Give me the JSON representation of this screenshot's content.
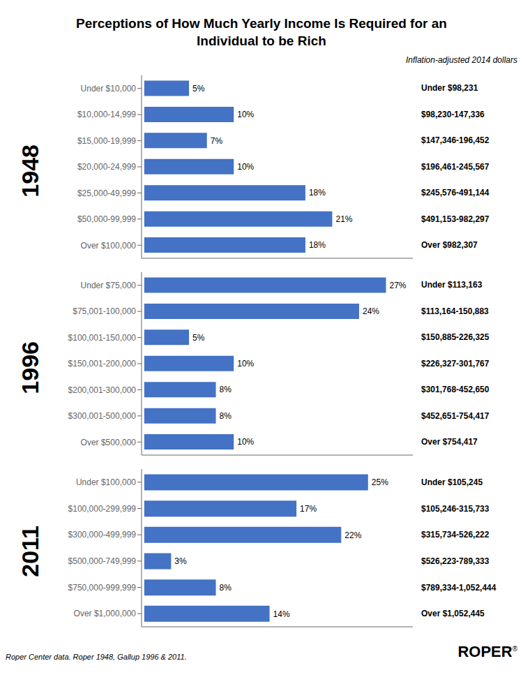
{
  "title": "Perceptions of How Much Yearly Income Is Required for an\nIndividual to be Rich",
  "subtitle": "Inflation-adjusted 2014 dollars",
  "annotations": [
    "Roper Center data. Roper 1948, Gallup 1996 & 2011.",
    "ROPER",
    "®"
  ],
  "chart_data": [
    {
      "type": "bar",
      "orientation": "horizontal",
      "title": "1948",
      "color": "#4472C4",
      "data_labels": true,
      "tick_labels": "y",
      "xlim": [
        -0.3,
        30
      ],
      "categories": [
        "Under $10,000",
        "$10,000-14,999",
        "$15,000-19,999",
        "$20,000-24,999",
        "$25,000-49,999",
        "$50,000-99,999",
        "Over $100,000"
      ],
      "values": [
        5,
        10,
        7,
        10,
        18,
        21,
        18
      ],
      "value_labels": [
        "5%",
        "10%",
        "7%",
        "10%",
        "18%",
        "21%",
        "18%"
      ],
      "annotations": [
        "Under $98,231",
        "$98,230-147,336",
        "$147,346-196,452",
        "$196,461-245,567",
        "$245,576-491,144",
        "$491,153-982,297",
        "Over $982,307"
      ]
    },
    {
      "type": "bar",
      "orientation": "horizontal",
      "title": "1996",
      "color": "#4472C4",
      "data_labels": true,
      "tick_labels": "y",
      "xlim": [
        -0.3,
        30
      ],
      "categories": [
        "Under $75,000",
        "$75,001-100,000",
        "$100,001-150,000",
        "$150,001-200,000",
        "$200,001-300,000",
        "$300,001-500,000",
        "Over $500,000"
      ],
      "values": [
        27,
        24,
        5,
        10,
        8,
        8,
        10
      ],
      "value_labels": [
        "27%",
        "24%",
        "5%",
        "10%",
        "8%",
        "8%",
        "10%"
      ],
      "annotations": [
        "Under $113,163",
        "$113,164-150,883",
        "$150,885-226,325",
        "$226,327-301,767",
        "$301,768-452,650",
        "$452,651-754,417",
        "Over $754,417"
      ]
    },
    {
      "type": "bar",
      "orientation": "horizontal",
      "title": "2011",
      "color": "#4472C4",
      "data_labels": true,
      "tick_labels": "y",
      "xlim": [
        -0.3,
        30
      ],
      "categories": [
        "Under $100,000",
        "$100,000-299,999",
        "$300,000-499,999",
        "$500,000-749,999",
        "$750,000-999,999",
        "Over $1,000,000"
      ],
      "values": [
        25,
        17,
        22,
        3,
        8,
        14
      ],
      "value_labels": [
        "25%",
        "17%",
        "22%",
        "3%",
        "8%",
        "14%"
      ],
      "annotations": [
        "Under $105,245",
        "$105,246-315,733",
        "$315,734-526,222",
        "$526,223-789,333",
        "$789,334-1,052,444",
        "Over $1,052,445"
      ]
    }
  ]
}
